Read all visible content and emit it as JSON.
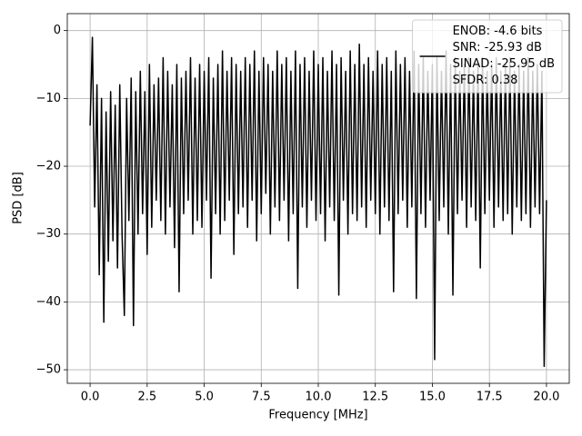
{
  "chart_data": {
    "type": "line",
    "xlabel": "Frequency [MHz]",
    "ylabel": "PSD [dB]",
    "x": [
      0,
      0.1,
      0.2,
      0.3,
      0.4,
      0.5,
      0.6,
      0.7,
      0.8,
      0.9,
      1.0,
      1.1,
      1.2,
      1.3,
      1.4,
      1.5,
      1.6,
      1.7,
      1.8,
      1.9,
      2.0,
      2.1,
      2.2,
      2.3,
      2.4,
      2.5,
      2.6,
      2.7,
      2.8,
      2.9,
      3.0,
      3.1,
      3.2,
      3.3,
      3.4,
      3.5,
      3.6,
      3.7,
      3.8,
      3.9,
      4.0,
      4.1,
      4.2,
      4.3,
      4.4,
      4.5,
      4.6,
      4.7,
      4.8,
      4.9,
      5.0,
      5.1,
      5.2,
      5.3,
      5.4,
      5.5,
      5.6,
      5.7,
      5.8,
      5.9,
      6.0,
      6.1,
      6.2,
      6.3,
      6.4,
      6.5,
      6.6,
      6.7,
      6.8,
      6.9,
      7.0,
      7.1,
      7.2,
      7.3,
      7.4,
      7.5,
      7.6,
      7.7,
      7.8,
      7.9,
      8.0,
      8.1,
      8.2,
      8.3,
      8.4,
      8.5,
      8.6,
      8.7,
      8.8,
      8.9,
      9.0,
      9.1,
      9.2,
      9.3,
      9.4,
      9.5,
      9.6,
      9.7,
      9.8,
      9.9,
      10.0,
      10.1,
      10.2,
      10.3,
      10.4,
      10.5,
      10.6,
      10.7,
      10.8,
      10.9,
      11.0,
      11.1,
      11.2,
      11.3,
      11.4,
      11.5,
      11.6,
      11.7,
      11.8,
      11.9,
      12.0,
      12.1,
      12.2,
      12.3,
      12.4,
      12.5,
      12.6,
      12.7,
      12.8,
      12.9,
      13.0,
      13.1,
      13.2,
      13.3,
      13.4,
      13.5,
      13.6,
      13.7,
      13.8,
      13.9,
      14.0,
      14.1,
      14.2,
      14.3,
      14.4,
      14.5,
      14.6,
      14.7,
      14.8,
      14.9,
      15.0,
      15.1,
      15.2,
      15.3,
      15.4,
      15.5,
      15.6,
      15.7,
      15.8,
      15.9,
      16.0,
      16.1,
      16.2,
      16.3,
      16.4,
      16.5,
      16.6,
      16.7,
      16.8,
      16.9,
      17.0,
      17.1,
      17.2,
      17.3,
      17.4,
      17.5,
      17.6,
      17.7,
      17.8,
      17.9,
      18.0,
      18.1,
      18.2,
      18.3,
      18.4,
      18.5,
      18.6,
      18.7,
      18.8,
      18.9,
      19.0,
      19.1,
      19.2,
      19.3,
      19.4,
      19.5,
      19.6,
      19.7,
      19.8,
      19.9,
      20.0
    ],
    "series": [
      {
        "name": "ENOB: -4.6 bits\nSNR: -25.93 dB\nSINAD: -25.95 dB\nSFDR: 0.38",
        "color": "#000000",
        "values": [
          -14,
          -1,
          -26,
          -8,
          -36,
          -10,
          -43,
          -12,
          -34,
          -9,
          -31,
          -11,
          -35,
          -8,
          -30,
          -42,
          -10,
          -28,
          -7,
          -43.5,
          -9,
          -30,
          -6,
          -27,
          -9,
          -33,
          -5,
          -29,
          -8,
          -25,
          -7,
          -28,
          -4,
          -30,
          -6,
          -26,
          -8,
          -32,
          -5,
          -38.5,
          -7,
          -27,
          -6,
          -25,
          -4,
          -30,
          -7,
          -28,
          -5,
          -29,
          -6,
          -25,
          -4,
          -36.5,
          -7,
          -27,
          -5,
          -30,
          -3,
          -28,
          -6,
          -25,
          -4,
          -33,
          -5,
          -27,
          -6,
          -26,
          -4,
          -29,
          -5,
          -25,
          -3,
          -31,
          -6,
          -27,
          -4,
          -24,
          -5,
          -30,
          -6,
          -26,
          -3,
          -28,
          -5,
          -25,
          -4,
          -31,
          -6,
          -27,
          -3,
          -38,
          -5,
          -26,
          -4,
          -29,
          -6,
          -25,
          -3,
          -28,
          -5,
          -27,
          -4,
          -31,
          -6,
          -26,
          -3,
          -28,
          -5,
          -39,
          -4,
          -25,
          -6,
          -30,
          -3,
          -27,
          -5,
          -28,
          -2,
          -26,
          -5,
          -29,
          -4,
          -25,
          -6,
          -27,
          -3,
          -30,
          -5,
          -26,
          -4,
          -28,
          -6,
          -38.5,
          -3,
          -27,
          -5,
          -25,
          -4,
          -29,
          -6,
          -26,
          -3,
          -39.5,
          -5,
          -27,
          -4,
          -29,
          -6,
          -25,
          -5,
          -48.5,
          -4,
          -28,
          -6,
          -26,
          -3,
          -30,
          -5,
          -39,
          -4,
          -27,
          -6,
          -25,
          -5,
          -29,
          -4,
          -26,
          -6,
          -28,
          -5,
          -35,
          -4,
          -27,
          -6,
          -25,
          -5,
          -29,
          -4,
          -26,
          -6,
          -28,
          -5,
          -27,
          -4,
          -30,
          -6,
          -26,
          -5,
          -28,
          -6,
          -27,
          -4,
          -29,
          -6,
          -26,
          -5,
          -27,
          -6,
          -49.5,
          -25
        ]
      }
    ],
    "xlim": [
      -1.0,
      21.0
    ],
    "xticks": [
      {
        "value": 0,
        "label": "0.0"
      },
      {
        "value": 2.5,
        "label": "2.5"
      },
      {
        "value": 5,
        "label": "5.0"
      },
      {
        "value": 7.5,
        "label": "7.5"
      },
      {
        "value": 10,
        "label": "10.0"
      },
      {
        "value": 12.5,
        "label": "12.5"
      },
      {
        "value": 15,
        "label": "15.0"
      },
      {
        "value": 17.5,
        "label": "17.5"
      },
      {
        "value": 20,
        "label": "20.0"
      }
    ],
    "ylim": [
      -52,
      2.5
    ],
    "yticks": [
      0,
      {
        "value": -10,
        "label": "−10"
      },
      {
        "value": -20,
        "label": "−20"
      },
      {
        "value": -30,
        "label": "−30"
      },
      {
        "value": -40,
        "label": "−40"
      },
      {
        "value": -50,
        "label": "−50"
      }
    ],
    "grid": true,
    "legend": "upper right"
  }
}
